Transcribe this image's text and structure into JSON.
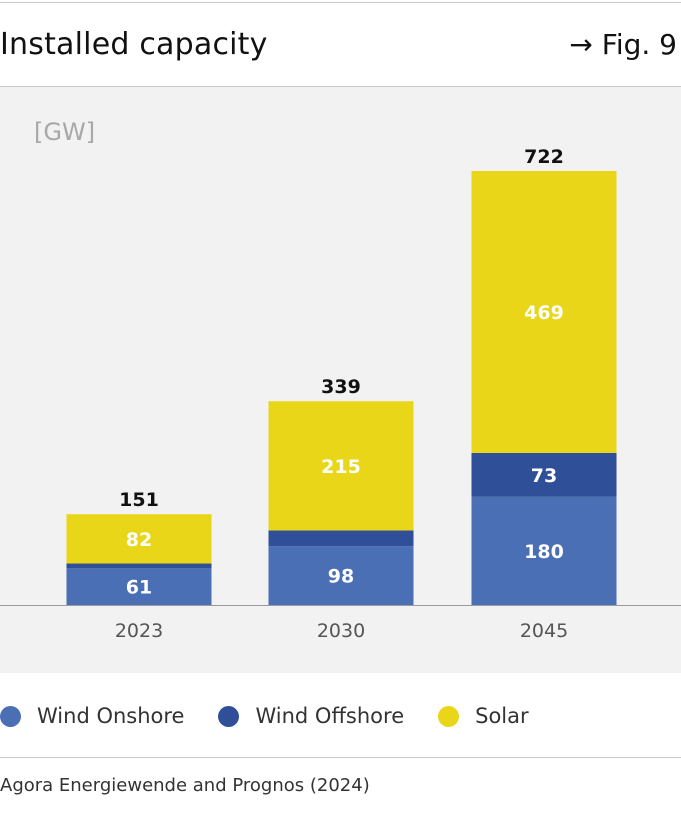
{
  "header": {
    "title": "Installed capacity",
    "figure_ref": "→ Fig. 9"
  },
  "chart_data": {
    "type": "bar",
    "stacked": true,
    "unit_label": "[GW]",
    "categories": [
      "2023",
      "2030",
      "2045"
    ],
    "series": [
      {
        "name": "Wind Onshore",
        "color": "#4a6fb5",
        "values": [
          61,
          98,
          180
        ]
      },
      {
        "name": "Wind Offshore",
        "color": "#2f4f98",
        "values": [
          8,
          26,
          73
        ]
      },
      {
        "name": "Solar",
        "color": "#e9d619",
        "values": [
          82,
          215,
          469
        ]
      }
    ],
    "segment_labels": [
      [
        "61",
        "",
        "82"
      ],
      [
        "98",
        "",
        "215"
      ],
      [
        "180",
        "73",
        "469"
      ]
    ],
    "totals": [
      "151",
      "339",
      "722"
    ],
    "ylim": [
      0,
      722
    ],
    "grid": false
  },
  "legend": [
    {
      "label": "Wind Onshore",
      "color": "#4a6fb5"
    },
    {
      "label": "Wind Offshore",
      "color": "#2f4f98"
    },
    {
      "label": "Solar",
      "color": "#e9d619"
    }
  ],
  "source": "Agora Energiewende and Prognos (2024)"
}
